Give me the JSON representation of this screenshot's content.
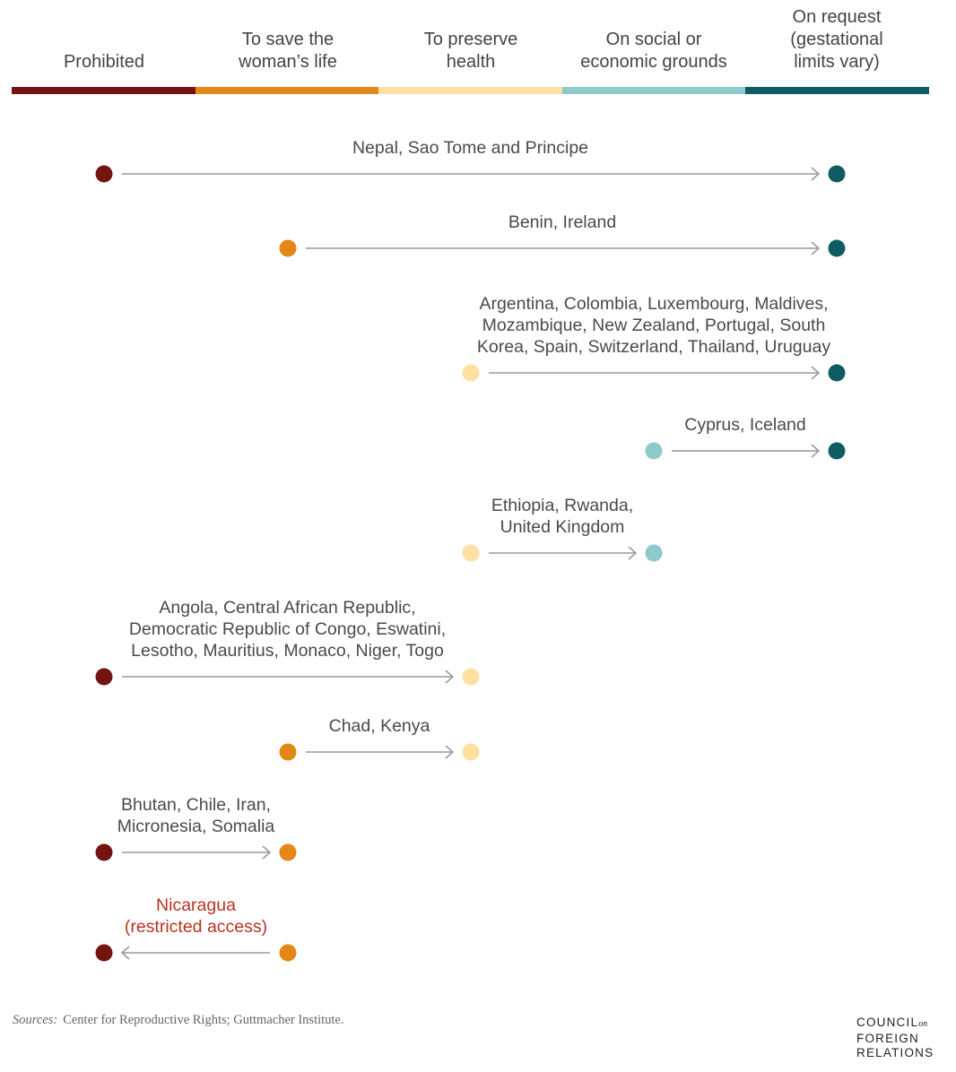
{
  "colors": {
    "prohibited": "#731410",
    "save_life": "#e38817",
    "preserve_health": "#fde0a2",
    "social_economic": "#8fcaca",
    "on_request": "#0f5c62",
    "arrow": "#999999",
    "highlight": "#b8321f"
  },
  "categories": [
    {
      "key": "prohibited",
      "label": [
        "Prohibited"
      ]
    },
    {
      "key": "save_life",
      "label": [
        "To save the",
        "woman’s life"
      ]
    },
    {
      "key": "preserve_health",
      "label": [
        "To preserve",
        "health"
      ]
    },
    {
      "key": "social_economic",
      "label": [
        "On social or",
        "economic grounds"
      ]
    },
    {
      "key": "on_request",
      "label": [
        "On request",
        "(gestational",
        "limits vary)"
      ]
    }
  ],
  "changes": [
    {
      "from": 0,
      "to": 4,
      "label": [
        "Nepal, Sao Tome and Principe"
      ]
    },
    {
      "from": 1,
      "to": 4,
      "label": [
        "Benin, Ireland"
      ]
    },
    {
      "from": 2,
      "to": 4,
      "label": [
        "Argentina, Colombia, Luxembourg, Maldives,",
        "Mozambique, New Zealand, Portugal, South",
        "Korea, Spain, Switzerland, Thailand, Uruguay"
      ]
    },
    {
      "from": 3,
      "to": 4,
      "label": [
        "Cyprus, Iceland"
      ]
    },
    {
      "from": 2,
      "to": 3,
      "label": [
        "Ethiopia, Rwanda,",
        "United Kingdom"
      ]
    },
    {
      "from": 0,
      "to": 2,
      "label": [
        "Angola, Central African Republic,",
        "Democratic Republic of Congo, Eswatini,",
        "Lesotho, Mauritius, Monaco, Niger, Togo"
      ]
    },
    {
      "from": 1,
      "to": 2,
      "label": [
        "Chad, Kenya"
      ]
    },
    {
      "from": 0,
      "to": 1,
      "label": [
        "Bhutan, Chile, Iran,",
        "Micronesia, Somalia"
      ]
    },
    {
      "from": 1,
      "to": 0,
      "label": [
        "Nicaragua",
        "(restricted access)"
      ],
      "highlight": true
    }
  ],
  "footer": {
    "sources_label": "Sources:",
    "sources_text": "Center for Reproductive Rights; Guttmacher Institute.",
    "logo": [
      "COUNCIL",
      "on",
      "FOREIGN",
      "RELATIONS"
    ]
  }
}
